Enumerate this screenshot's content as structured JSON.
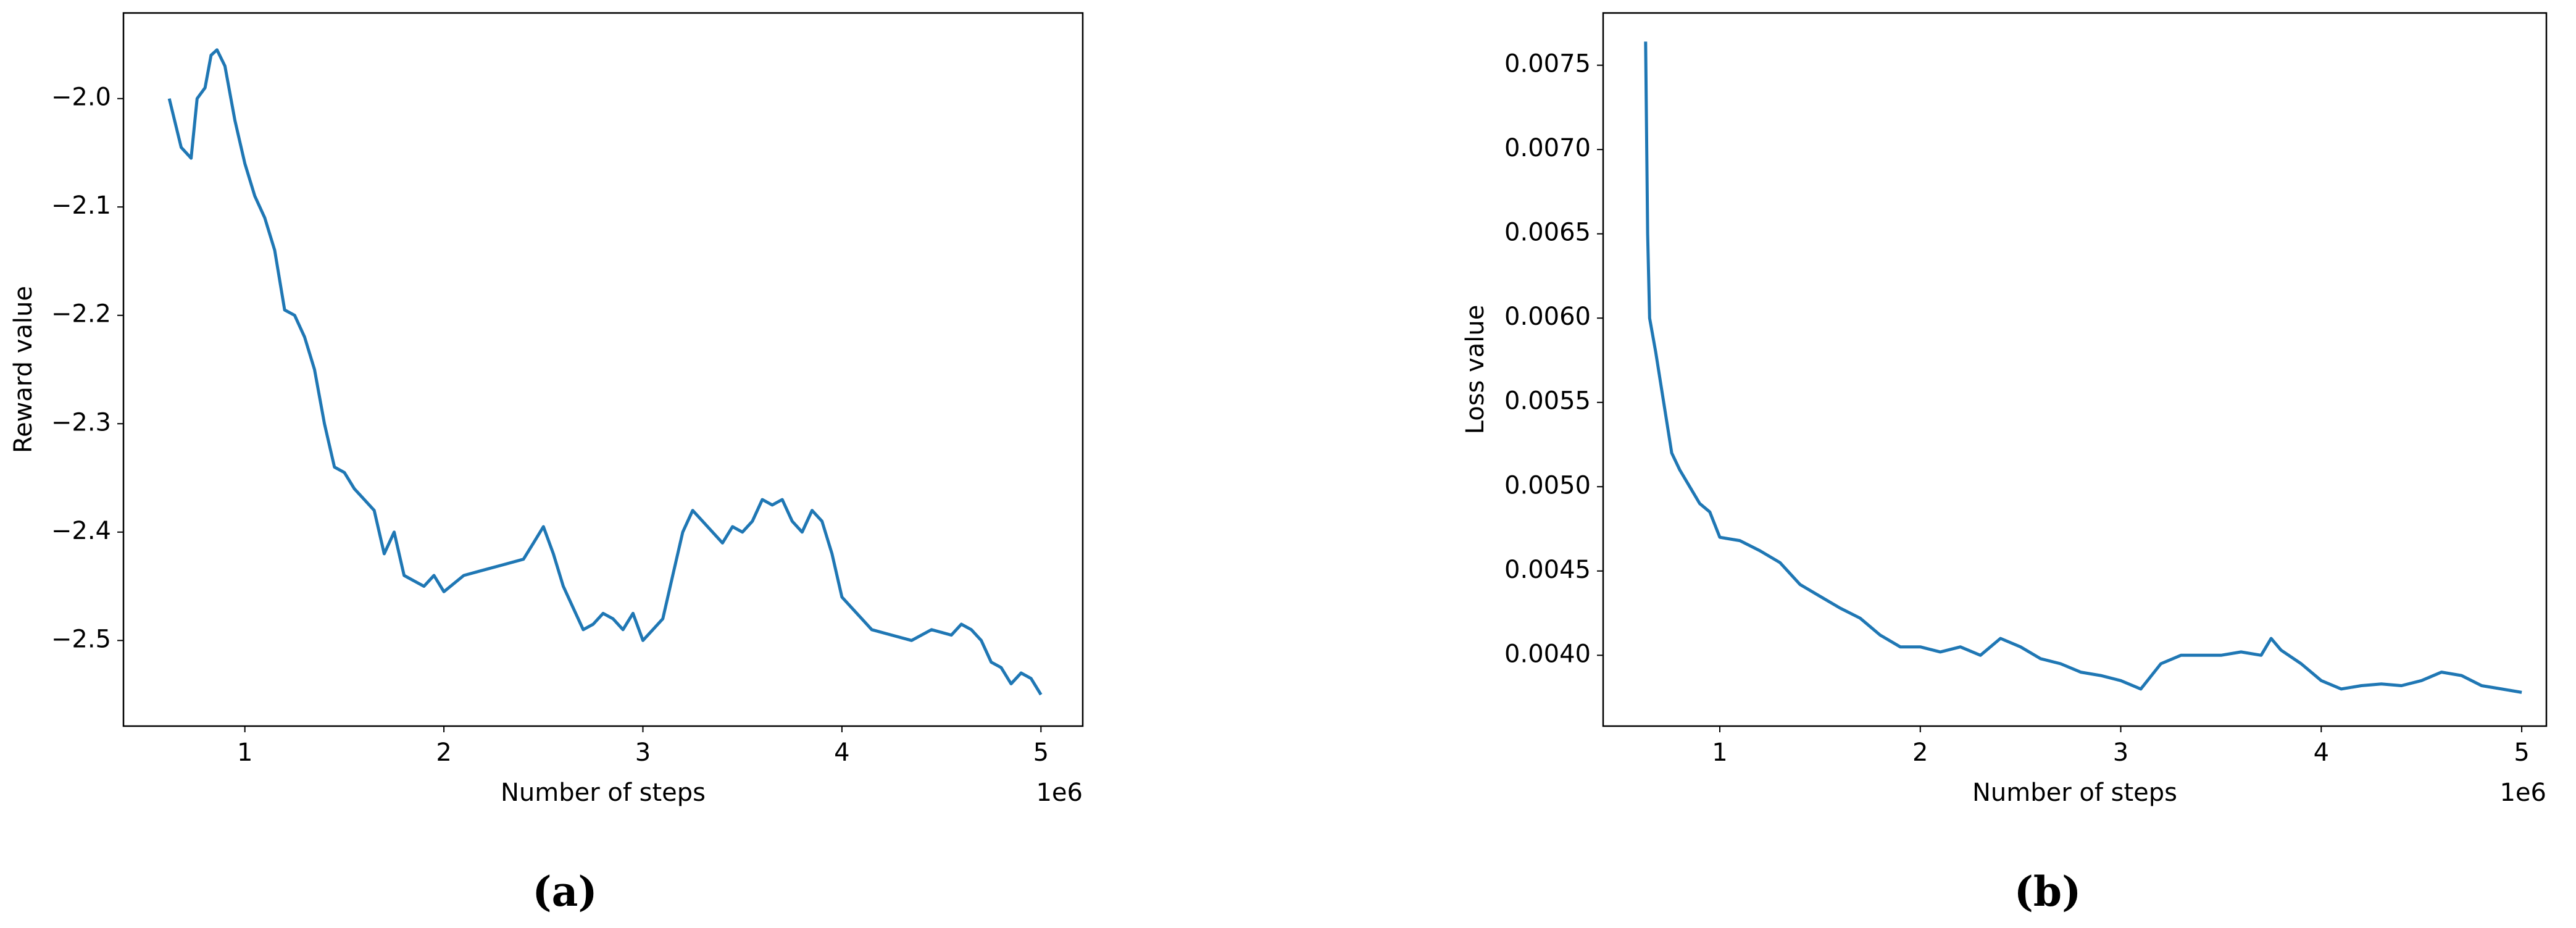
{
  "chart_data": [
    {
      "type": "line",
      "xlabel": "Number of steps",
      "ylabel": "Reward value",
      "x_offset_label": "1e6",
      "caption": "(a)",
      "color": "#1f77b4",
      "xlim": [
        0.39,
        5.21
      ],
      "ylim": [
        -2.579,
        -1.921
      ],
      "xticks": [
        1,
        2,
        3,
        4,
        5
      ],
      "yticks": [
        {
          "value": -2.5,
          "label": "−2.5"
        },
        {
          "value": -2.4,
          "label": "−2.4"
        },
        {
          "value": -2.3,
          "label": "−2.3"
        },
        {
          "value": -2.2,
          "label": "−2.2"
        },
        {
          "value": -2.1,
          "label": "−2.1"
        },
        {
          "value": -2.0,
          "label": "−2.0"
        }
      ],
      "x": [
        0.62,
        0.68,
        0.73,
        0.76,
        0.8,
        0.83,
        0.86,
        0.9,
        0.95,
        1.0,
        1.05,
        1.1,
        1.15,
        1.2,
        1.25,
        1.3,
        1.35,
        1.4,
        1.45,
        1.5,
        1.55,
        1.6,
        1.65,
        1.7,
        1.75,
        1.8,
        1.85,
        1.9,
        1.95,
        2.0,
        2.1,
        2.2,
        2.3,
        2.4,
        2.45,
        2.5,
        2.55,
        2.6,
        2.65,
        2.7,
        2.75,
        2.8,
        2.85,
        2.9,
        2.95,
        3.0,
        3.05,
        3.1,
        3.15,
        3.2,
        3.25,
        3.3,
        3.35,
        3.4,
        3.45,
        3.5,
        3.55,
        3.6,
        3.65,
        3.7,
        3.75,
        3.8,
        3.85,
        3.9,
        3.95,
        4.0,
        4.05,
        4.1,
        4.15,
        4.25,
        4.35,
        4.45,
        4.55,
        4.6,
        4.65,
        4.7,
        4.75,
        4.8,
        4.85,
        4.9,
        4.95,
        5.0
      ],
      "values": [
        -2.0,
        -2.045,
        -2.055,
        -2.0,
        -1.99,
        -1.96,
        -1.955,
        -1.97,
        -2.02,
        -2.06,
        -2.09,
        -2.11,
        -2.14,
        -2.195,
        -2.2,
        -2.22,
        -2.25,
        -2.3,
        -2.34,
        -2.345,
        -2.36,
        -2.37,
        -2.38,
        -2.42,
        -2.4,
        -2.44,
        -2.445,
        -2.45,
        -2.44,
        -2.455,
        -2.44,
        -2.435,
        -2.43,
        -2.425,
        -2.41,
        -2.395,
        -2.42,
        -2.45,
        -2.47,
        -2.49,
        -2.485,
        -2.475,
        -2.48,
        -2.49,
        -2.475,
        -2.5,
        -2.49,
        -2.48,
        -2.44,
        -2.4,
        -2.38,
        -2.39,
        -2.4,
        -2.41,
        -2.395,
        -2.4,
        -2.39,
        -2.37,
        -2.375,
        -2.37,
        -2.39,
        -2.4,
        -2.38,
        -2.39,
        -2.42,
        -2.46,
        -2.47,
        -2.48,
        -2.49,
        -2.495,
        -2.5,
        -2.49,
        -2.495,
        -2.485,
        -2.49,
        -2.5,
        -2.52,
        -2.525,
        -2.54,
        -2.53,
        -2.535,
        -2.55
      ]
    },
    {
      "type": "line",
      "xlabel": "Number of steps",
      "ylabel": "Loss value",
      "x_offset_label": "1e6",
      "caption": "(b)",
      "color": "#1f77b4",
      "xlim": [
        0.418,
        5.123
      ],
      "ylim": [
        0.00358,
        0.00781
      ],
      "xticks": [
        1,
        2,
        3,
        4,
        5
      ],
      "yticks": [
        {
          "value": 0.004,
          "label": "0.0040"
        },
        {
          "value": 0.0045,
          "label": "0.0045"
        },
        {
          "value": 0.005,
          "label": "0.0050"
        },
        {
          "value": 0.0055,
          "label": "0.0055"
        },
        {
          "value": 0.006,
          "label": "0.0060"
        },
        {
          "value": 0.0065,
          "label": "0.0065"
        },
        {
          "value": 0.007,
          "label": "0.0070"
        },
        {
          "value": 0.0075,
          "label": "0.0075"
        }
      ],
      "x": [
        0.63,
        0.64,
        0.65,
        0.68,
        0.72,
        0.76,
        0.8,
        0.85,
        0.9,
        0.95,
        1.0,
        1.1,
        1.2,
        1.3,
        1.4,
        1.5,
        1.6,
        1.7,
        1.8,
        1.9,
        2.0,
        2.1,
        2.2,
        2.3,
        2.4,
        2.5,
        2.6,
        2.7,
        2.8,
        2.9,
        3.0,
        3.1,
        3.2,
        3.3,
        3.4,
        3.5,
        3.6,
        3.7,
        3.75,
        3.8,
        3.9,
        4.0,
        4.1,
        4.2,
        4.3,
        4.4,
        4.5,
        4.6,
        4.7,
        4.8,
        4.9,
        5.0
      ],
      "values": [
        0.00764,
        0.0065,
        0.006,
        0.0058,
        0.0055,
        0.0052,
        0.0051,
        0.005,
        0.0049,
        0.00485,
        0.0047,
        0.00468,
        0.00462,
        0.00455,
        0.00442,
        0.00435,
        0.00428,
        0.00422,
        0.00412,
        0.00405,
        0.00405,
        0.00402,
        0.00405,
        0.004,
        0.0041,
        0.00405,
        0.00398,
        0.00395,
        0.0039,
        0.00388,
        0.00385,
        0.0038,
        0.00395,
        0.004,
        0.004,
        0.004,
        0.00402,
        0.004,
        0.0041,
        0.00403,
        0.00395,
        0.00385,
        0.0038,
        0.00382,
        0.00383,
        0.00382,
        0.00385,
        0.0039,
        0.00388,
        0.00382,
        0.0038,
        0.00378
      ]
    }
  ]
}
